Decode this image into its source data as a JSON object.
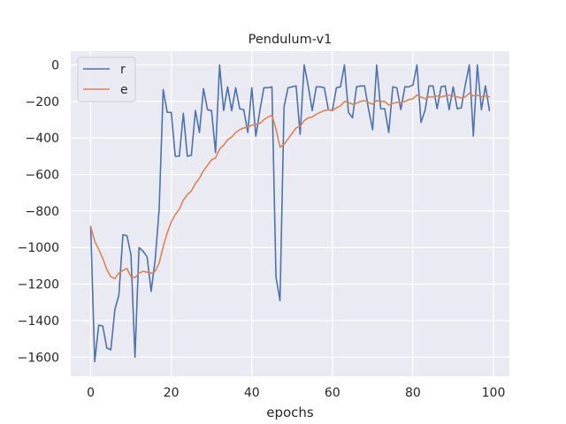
{
  "chart_data": {
    "type": "line",
    "title": "Pendulum-v1",
    "xlabel": "epochs",
    "ylabel": "",
    "xlim": [
      -4.95,
      103.95
    ],
    "ylim": [
      -1705,
      75
    ],
    "xticks": [
      0,
      20,
      40,
      60,
      80,
      100
    ],
    "yticks": [
      0,
      -200,
      -400,
      -600,
      -800,
      -1000,
      -1200,
      -1400,
      -1600
    ],
    "grid": true,
    "legend_position": "top-left",
    "x": [
      0,
      1,
      2,
      3,
      4,
      5,
      6,
      7,
      8,
      9,
      10,
      11,
      12,
      13,
      14,
      15,
      16,
      17,
      18,
      19,
      20,
      21,
      22,
      23,
      24,
      25,
      26,
      27,
      28,
      29,
      30,
      31,
      32,
      33,
      34,
      35,
      36,
      37,
      38,
      39,
      40,
      41,
      42,
      43,
      44,
      45,
      46,
      47,
      48,
      49,
      50,
      51,
      52,
      53,
      54,
      55,
      56,
      57,
      58,
      59,
      60,
      61,
      62,
      63,
      64,
      65,
      66,
      67,
      68,
      69,
      70,
      71,
      72,
      73,
      74,
      75,
      76,
      77,
      78,
      79,
      80,
      81,
      82,
      83,
      84,
      85,
      86,
      87,
      88,
      89,
      90,
      91,
      92,
      93,
      94,
      95,
      96,
      97,
      98,
      99
    ],
    "series": [
      {
        "name": "r",
        "color": "#4c72b0",
        "values": [
          -885,
          -1625,
          -1425,
          -1430,
          -1550,
          -1560,
          -1340,
          -1260,
          -930,
          -935,
          -1040,
          -1600,
          -1000,
          -1020,
          -1050,
          -1240,
          -1070,
          -790,
          -135,
          -260,
          -260,
          -500,
          -500,
          -265,
          -500,
          -495,
          -250,
          -370,
          -130,
          -245,
          -250,
          -480,
          0,
          -250,
          -120,
          -250,
          -125,
          -240,
          -245,
          -370,
          -125,
          -390,
          -250,
          -125,
          -125,
          -120,
          -1160,
          -1290,
          -230,
          -125,
          -120,
          -115,
          -380,
          0,
          -115,
          -250,
          -120,
          -120,
          -125,
          -245,
          -250,
          -125,
          -120,
          0,
          -260,
          -290,
          -120,
          -115,
          -115,
          -245,
          -355,
          0,
          -240,
          -240,
          -370,
          -120,
          -125,
          -245,
          -120,
          -120,
          -110,
          0,
          -315,
          -250,
          -115,
          -115,
          -240,
          -120,
          -115,
          -245,
          -120,
          -240,
          -235,
          -110,
          0,
          -390,
          0,
          -245,
          -115,
          -250
        ]
      },
      {
        "name": "e",
        "color": "#dd8452",
        "values": [
          -885,
          -965,
          -1010,
          -1060,
          -1120,
          -1160,
          -1170,
          -1140,
          -1125,
          -1115,
          -1160,
          -1165,
          -1140,
          -1130,
          -1135,
          -1140,
          -1130,
          -1085,
          -995,
          -920,
          -860,
          -820,
          -790,
          -740,
          -710,
          -690,
          -650,
          -620,
          -580,
          -550,
          -520,
          -510,
          -460,
          -440,
          -410,
          -395,
          -370,
          -355,
          -345,
          -340,
          -330,
          -325,
          -320,
          -300,
          -285,
          -275,
          -350,
          -450,
          -435,
          -405,
          -375,
          -345,
          -335,
          -305,
          -290,
          -285,
          -270,
          -260,
          -250,
          -245,
          -250,
          -235,
          -225,
          -200,
          -205,
          -215,
          -210,
          -200,
          -195,
          -205,
          -215,
          -195,
          -200,
          -200,
          -220,
          -210,
          -205,
          -205,
          -200,
          -190,
          -185,
          -165,
          -175,
          -185,
          -175,
          -175,
          -170,
          -175,
          -170,
          -165,
          -170,
          -175,
          -180,
          -175,
          -155,
          -170,
          -165,
          -175,
          -170,
          -175
        ]
      }
    ]
  }
}
